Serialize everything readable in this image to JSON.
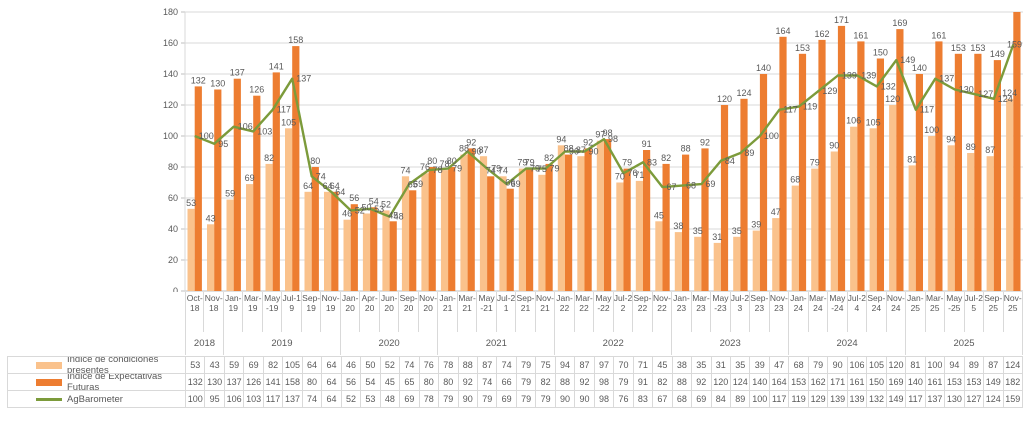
{
  "chart_data": {
    "type": "bar",
    "subtype": "clustered-bars-with-line-overlay",
    "title": "",
    "xlabel": "",
    "ylabel": "",
    "categories": [
      "Oct-18",
      "Nov-18",
      "Jan-19",
      "Mar-19",
      "May-19",
      "Jul-19",
      "Sep-19",
      "Nov-19",
      "Jan-20",
      "Apr-20",
      "Jun-20",
      "Sep-20",
      "Nov-20",
      "Jan-21",
      "Mar-21",
      "May-21",
      "Jul-21",
      "Sep-21",
      "Nov-21",
      "Jan-22",
      "Mar-22",
      "May-22",
      "Jul-22",
      "Sep-22",
      "Nov-22",
      "Jan-23",
      "Mar-23",
      "May-23",
      "Jul-23",
      "Sep-23",
      "Nov-23",
      "Jan-24",
      "Mar-24",
      "May-24",
      "Jul-24",
      "Sep-24",
      "Nov-24",
      "Jan-25",
      "Mar-25",
      "May-25",
      "Jul-25",
      "Sep-25",
      "Nov-25"
    ],
    "year_groups": [
      {
        "label": "2018",
        "span": 2
      },
      {
        "label": "2019",
        "span": 6
      },
      {
        "label": "2020",
        "span": 5
      },
      {
        "label": "2021",
        "span": 6
      },
      {
        "label": "2022",
        "span": 6
      },
      {
        "label": "2023",
        "span": 6
      },
      {
        "label": "2024",
        "span": 6
      },
      {
        "label": "2025",
        "span": 6
      }
    ],
    "series": [
      {
        "name": "Índice de condiciones presentes",
        "type": "bar",
        "color": "#FAC28C",
        "values": [
          53,
          43,
          59,
          69,
          82,
          105,
          64,
          64,
          46,
          50,
          52,
          74,
          76,
          78,
          88,
          87,
          74,
          79,
          75,
          94,
          87,
          97,
          70,
          71,
          45,
          38,
          35,
          31,
          35,
          39,
          47,
          68,
          79,
          90,
          106,
          105,
          120,
          81,
          100,
          94,
          89,
          87,
          124
        ]
      },
      {
        "name": "Índice de Expectativas Futuras",
        "type": "bar",
        "color": "#ED7D31",
        "values": [
          132,
          130,
          137,
          126,
          141,
          158,
          80,
          64,
          56,
          54,
          45,
          65,
          80,
          80,
          92,
          74,
          66,
          79,
          82,
          88,
          92,
          98,
          79,
          91,
          82,
          88,
          92,
          120,
          124,
          140,
          164,
          153,
          162,
          171,
          161,
          150,
          169,
          140,
          161,
          153,
          153,
          149,
          182
        ]
      },
      {
        "name": "AgBarometer",
        "type": "line",
        "color": "#7C9B3B",
        "values": [
          100,
          95,
          106,
          103,
          117,
          137,
          74,
          64,
          52,
          53,
          48,
          69,
          78,
          79,
          90,
          79,
          69,
          79,
          79,
          90,
          90,
          98,
          76,
          83,
          67,
          68,
          69,
          84,
          89,
          100,
          117,
          119,
          129,
          139,
          139,
          132,
          149,
          117,
          137,
          130,
          127,
          124,
          159
        ]
      }
    ],
    "y_axis": {
      "min": 0,
      "max": 180,
      "step": 20,
      "tick_labels": [
        "0",
        "20",
        "40",
        "60",
        "80",
        "100",
        "120",
        "140",
        "160",
        "180"
      ]
    },
    "grid": true,
    "data_labels": true,
    "legend_position": "data-table-left",
    "style": {
      "grid_color": "#D9D9D9",
      "axis_color": "#BFBFBF",
      "label_color": "#595959",
      "background": "#FFFFFF"
    }
  }
}
